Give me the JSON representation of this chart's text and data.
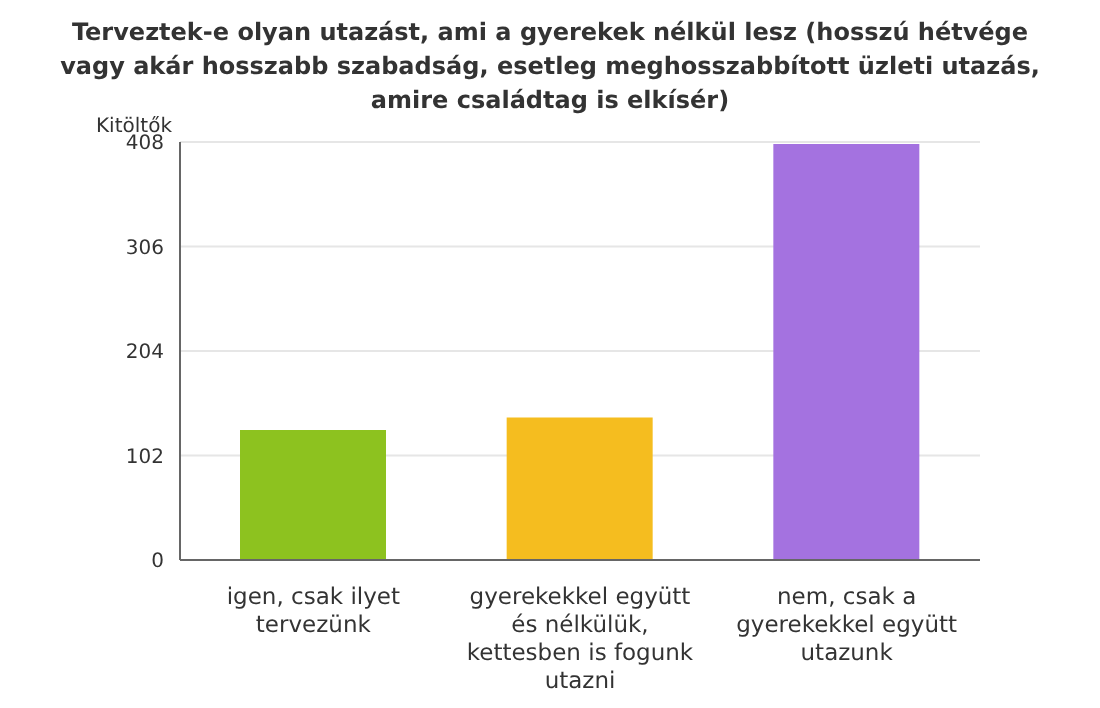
{
  "chart_data": {
    "type": "bar",
    "title": "Terveztek-e olyan utazást, ami a gyerekek nélkül lesz (hosszú hétvége vagy akár hosszabb szabadság, esetleg meghosszabbított üzleti utazás, amire családtag is elkísér)",
    "ylabel": "Kitöltők",
    "categories": [
      "igen, csak ilyet tervezünk",
      "gyerekekkel együtt és nélkülük, kettesben is fogunk utazni",
      "nem, csak a gyerekekkel együtt utazunk"
    ],
    "values": [
      127,
      139,
      406
    ],
    "colors": [
      "#8dc21f",
      "#f5bd1f",
      "#a472e0"
    ],
    "ylim": [
      0,
      408
    ],
    "yticks": [
      0,
      102,
      204,
      306,
      408
    ],
    "grid": "y"
  }
}
